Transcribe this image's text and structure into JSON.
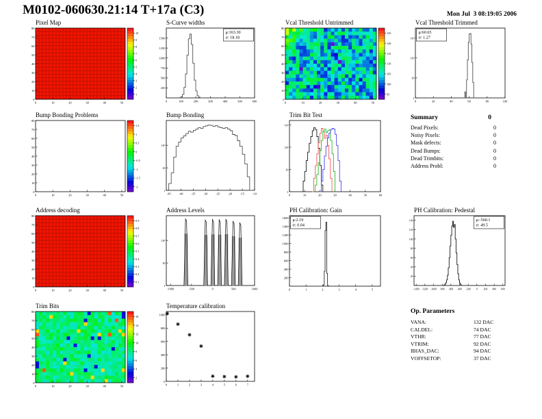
{
  "header": {
    "title": "M0102-060630.21:14 T+17a (C3)",
    "datetime": "Mon Jul  3 08:19:05 2006"
  },
  "summary": {
    "title": "Summary",
    "total": "0",
    "rows": [
      {
        "label": "Dead Pixels:",
        "value": "0"
      },
      {
        "label": "Noisy Pixels:",
        "value": "0"
      },
      {
        "label": "Mask defects:",
        "value": "0"
      },
      {
        "label": "Dead Bumps:",
        "value": "0"
      },
      {
        "label": "Dead Trimbits:",
        "value": "0"
      },
      {
        "label": "Address Probl:",
        "value": "0"
      }
    ]
  },
  "op_parameters": {
    "title": "Op. Parameters",
    "rows": [
      {
        "label": "VANA:",
        "value": "132 DAC"
      },
      {
        "label": "CALDEL:",
        "value": "74 DAC"
      },
      {
        "label": "VTHR:",
        "value": "77 DAC"
      },
      {
        "label": "VTRIM:",
        "value": "92 DAC"
      },
      {
        "label": "IBIAS_DAC:",
        "value": "94 DAC"
      },
      {
        "label": "VOFFSETOP:",
        "value": "37 DAC"
      }
    ]
  },
  "chart_data": [
    {
      "name": "pixel-map",
      "title": "Pixel Map",
      "type": "heatmap",
      "style": "red",
      "xlim": [
        0,
        52
      ],
      "ylim": [
        0,
        80
      ],
      "xticks": [
        0,
        10,
        20,
        30,
        40,
        50
      ],
      "yticks": [
        0,
        10,
        20,
        30,
        40,
        50,
        60,
        70,
        80
      ],
      "colorbar": {
        "labels": [
          "10",
          "9",
          "8",
          "7",
          "6",
          "5",
          "4",
          "3",
          "2",
          "1"
        ]
      }
    },
    {
      "name": "scurve-widths",
      "title": "S-Curve widths",
      "type": "hist",
      "xlim": [
        0,
        600
      ],
      "ylim": [
        0,
        1750
      ],
      "xticks": [
        0,
        100,
        200,
        300,
        400,
        500,
        600
      ],
      "yticks": [
        250,
        500,
        750,
        1000,
        1250,
        1500
      ],
      "stats": {
        "mu": "163.30",
        "sigma": "18.18",
        "pos": "tr"
      },
      "series": [
        {
          "color": "#4f4f4f",
          "x0": 90,
          "dx": 10,
          "counts": [
            5,
            25,
            90,
            265,
            600,
            1070,
            1480,
            1600,
            1340,
            870,
            445,
            175,
            55,
            15,
            4,
            1
          ]
        }
      ]
    },
    {
      "name": "vcal-threshold-untrimmed",
      "title": "Vcal Threshold Untrimmed",
      "type": "heatmap",
      "style": "noise-vcal",
      "xlim": [
        0,
        52
      ],
      "ylim": [
        0,
        80
      ],
      "xticks": [
        0,
        10,
        20,
        30,
        40,
        50
      ],
      "yticks": [
        0,
        10,
        20,
        30,
        40,
        50,
        60,
        70,
        80
      ],
      "colorbar": {
        "labels": [
          "125",
          "120",
          "115",
          "110",
          "105",
          "100",
          "95"
        ]
      }
    },
    {
      "name": "vcal-threshold-trimmed",
      "title": "Vcal Threshold Trimmed",
      "type": "hist",
      "ylog": true,
      "ylogmax": 3.5,
      "xlim": [
        0,
        100
      ],
      "xticks": [
        0,
        20,
        40,
        60,
        80,
        100
      ],
      "ylogticks": [
        [
          1,
          "1"
        ],
        [
          10,
          "10"
        ],
        [
          100,
          "10²"
        ],
        [
          1000,
          "10³"
        ]
      ],
      "stats": {
        "mu": "60.65",
        "sigma": "1.27",
        "pos": "tl"
      },
      "series": [
        {
          "color": "#4f4f4f",
          "x0": 54,
          "dx": 1,
          "counts": [
            0,
            2,
            0,
            8,
            80,
            600,
            1600,
            1700,
            500,
            60,
            6,
            0
          ]
        }
      ]
    },
    {
      "name": "bump-bonding-problems",
      "title": "Bump Bonding Problems",
      "type": "heatmap",
      "style": "empty",
      "xlim": [
        0,
        52
      ],
      "ylim": [
        0,
        80
      ],
      "xticks": [
        0,
        10,
        20,
        30,
        40,
        50
      ],
      "yticks": [
        0,
        10,
        20,
        30,
        40,
        50,
        60,
        70,
        80
      ],
      "colorbar": {
        "labels": [
          "1.5",
          "1",
          "0.5",
          "0",
          "-0.5",
          "-1",
          "-1.5",
          "-2"
        ]
      }
    },
    {
      "name": "bump-bonding",
      "title": "Bump Bonding",
      "type": "hist",
      "ylog": true,
      "ylogmax": 3.1,
      "xlim": [
        -46,
        -10
      ],
      "xticks": [
        -45,
        -40,
        -35,
        -30,
        -25,
        -20,
        -15,
        -10
      ],
      "ylogticks": [
        [
          1,
          "1"
        ],
        [
          10,
          "10"
        ],
        [
          100,
          "10²"
        ]
      ],
      "series": [
        {
          "color": "#4f4f4f",
          "x0": -45,
          "dx": 1,
          "counts": [
            2,
            6,
            30,
            90,
            140,
            210,
            260,
            330,
            420,
            380,
            460,
            520,
            610,
            560,
            680,
            730,
            790,
            760,
            700,
            740,
            650,
            600,
            560,
            610,
            520,
            440,
            300,
            270,
            160,
            90,
            40,
            15,
            4,
            1
          ]
        }
      ]
    },
    {
      "name": "trim-bit-test",
      "title": "Trim Bit Test",
      "type": "hist",
      "ylog": true,
      "ylogmax": 3.2,
      "xlim": [
        0,
        60
      ],
      "xticks": [
        0,
        10,
        20,
        30,
        40,
        50,
        60
      ],
      "ylogticks": [
        [
          1,
          "1"
        ],
        [
          10,
          "10"
        ],
        [
          100,
          "10²"
        ],
        [
          1000,
          "10³"
        ]
      ],
      "series": [
        {
          "color": "#161616",
          "x0": 8,
          "dx": 1,
          "counts": [
            1,
            3,
            8,
            25,
            60,
            150,
            300,
            550,
            750,
            620,
            300,
            90,
            15,
            2
          ]
        },
        {
          "color": "#f55555",
          "x0": 15,
          "dx": 1,
          "counts": [
            1,
            4,
            15,
            50,
            160,
            420,
            700,
            500,
            250,
            350,
            120,
            30,
            4
          ]
        },
        {
          "color": "#22bb22",
          "x0": 17,
          "dx": 1,
          "counts": [
            2,
            6,
            20,
            70,
            200,
            500,
            650,
            450,
            550,
            600,
            200,
            50,
            8
          ]
        },
        {
          "color": "#4444ee",
          "x0": 20,
          "dx": 1,
          "counts": [
            1,
            3,
            10,
            40,
            110,
            260,
            420,
            600,
            700,
            650,
            380,
            120,
            25,
            3
          ]
        }
      ]
    },
    {
      "name": "address-decoding",
      "title": "Address decoding",
      "type": "heatmap",
      "style": "red",
      "xlim": [
        0,
        52
      ],
      "ylim": [
        0,
        80
      ],
      "xticks": [
        0,
        10,
        20,
        30,
        40,
        50
      ],
      "yticks": [
        0,
        10,
        20,
        30,
        40,
        50,
        60,
        70,
        80
      ],
      "colorbar": {
        "labels": [
          "0.9",
          "0.8",
          "0.7",
          "0.6",
          "0.5",
          "0.4",
          "0.3",
          "0.2",
          "0.1"
        ]
      }
    },
    {
      "name": "address-levels",
      "title": "Address Levels",
      "type": "spikes",
      "ylog": true,
      "ylogmax": 3.1,
      "xlim": [
        -1100,
        1000
      ],
      "xticks": [
        -1000,
        -500,
        0,
        500,
        1000
      ],
      "ylogticks": [
        [
          1,
          "1"
        ],
        [
          10,
          "10"
        ],
        [
          100,
          "10²"
        ]
      ],
      "spikes": [
        [
          -630,
          900
        ],
        [
          -160,
          800
        ],
        [
          10,
          850
        ],
        [
          170,
          820
        ],
        [
          330,
          860
        ],
        [
          500,
          700
        ],
        [
          660,
          600
        ]
      ]
    },
    {
      "name": "ph-calibration-gain",
      "title": "PH Calibration: Gain",
      "type": "hist",
      "xlim": [
        0,
        5.5
      ],
      "ylim": [
        0,
        1650
      ],
      "xticks": [
        0,
        1,
        2,
        3,
        4,
        5
      ],
      "yticks": [
        200,
        400,
        600,
        800,
        1000,
        1200,
        1400,
        1600
      ],
      "stats": {
        "mu": "2.19",
        "sigma": "0.04",
        "pos": "tl"
      },
      "series": [
        {
          "color": "#2a2a2a",
          "x0": 2.0,
          "dx": 0.05,
          "counts": [
            2,
            30,
            350,
            1300,
            1500,
            300,
            20,
            2
          ]
        }
      ]
    },
    {
      "name": "ph-calibration-pedestal",
      "title": "PH Calibration: Pedestal",
      "type": "hist",
      "xlim": [
        -1450,
        650
      ],
      "ylim": [
        0,
        150
      ],
      "tickfont": 3.8,
      "xticks": [
        -1400,
        -1200,
        -1000,
        -800,
        -600,
        -400,
        -200,
        0,
        200,
        400,
        600
      ],
      "yticks": [
        20,
        40,
        60,
        80,
        100,
        120,
        140
      ],
      "stats": {
        "mu": "-560.1",
        "sigma": "49.5",
        "pos": "tr"
      },
      "series": [
        {
          "color": "#161616",
          "x0": -760,
          "dx": 20,
          "counts": [
            1,
            3,
            6,
            12,
            22,
            38,
            60,
            85,
            108,
            128,
            138,
            125,
            131,
            100,
            70,
            45,
            25,
            12,
            5,
            2
          ]
        }
      ]
    },
    {
      "name": "trim-bits",
      "title": "Trim Bits",
      "type": "heatmap",
      "style": "noise-trim",
      "xlim": [
        0,
        52
      ],
      "ylim": [
        0,
        80
      ],
      "xticks": [
        0,
        10,
        20,
        30,
        40,
        50
      ],
      "yticks": [
        0,
        10,
        20,
        30,
        40,
        50,
        60,
        70,
        80
      ],
      "colorbar": {
        "labels": [
          "16",
          "14",
          "12",
          "10",
          "8",
          "6",
          "4",
          "2"
        ]
      }
    },
    {
      "name": "temperature-calibration",
      "title": "Temperature calibration",
      "type": "scatter",
      "xlim": [
        0,
        7.6
      ],
      "ylim": [
        0,
        1050
      ],
      "xticks": [
        0,
        1,
        2,
        3,
        4,
        5,
        6,
        7
      ],
      "yticks": [
        0,
        200,
        400,
        600,
        800,
        1000
      ],
      "points": [
        [
          0.08,
          1020
        ],
        [
          1,
          860
        ],
        [
          2,
          700
        ],
        [
          3,
          530
        ],
        [
          4,
          78
        ],
        [
          5,
          72
        ],
        [
          6,
          68
        ],
        [
          7,
          76
        ]
      ]
    }
  ]
}
